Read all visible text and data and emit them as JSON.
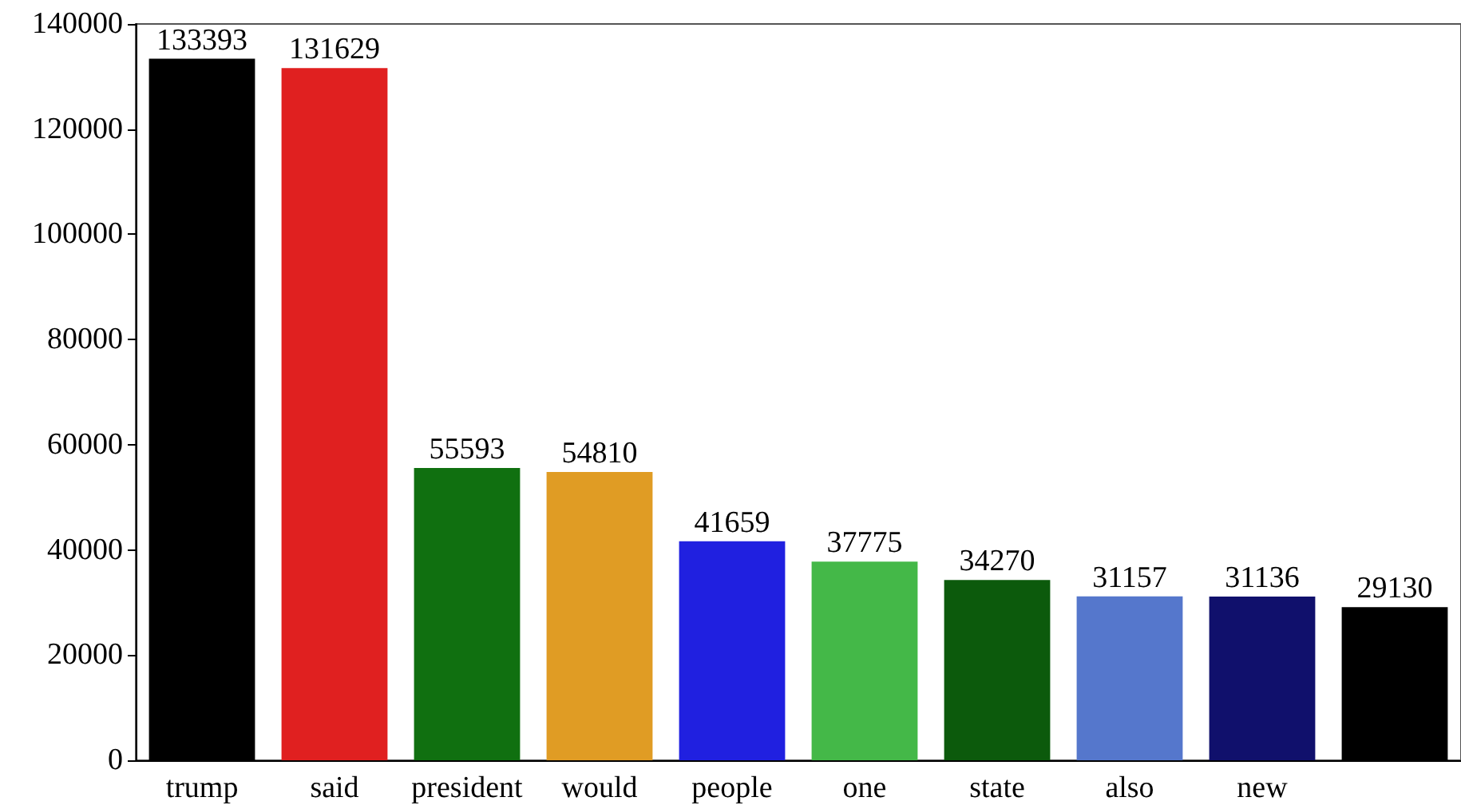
{
  "chart_data": {
    "type": "bar",
    "categories": [
      "trump",
      "said",
      "president",
      "would",
      "people",
      "one",
      "state",
      "also",
      "new",
      null
    ],
    "values": [
      133393,
      131629,
      55593,
      54810,
      41659,
      37775,
      34270,
      31157,
      31136,
      29130
    ],
    "colors": [
      "#000000",
      "#e02020",
      "#107010",
      "#e09c24",
      "#2020e0",
      "#44b848",
      "#0c5a0c",
      "#5577cc",
      "#10106c",
      "#000000"
    ],
    "ylim": [
      0,
      140000
    ],
    "yticks": [
      0,
      20000,
      40000,
      60000,
      80000,
      100000,
      120000,
      140000
    ],
    "grid": false,
    "data_labels": true
  }
}
